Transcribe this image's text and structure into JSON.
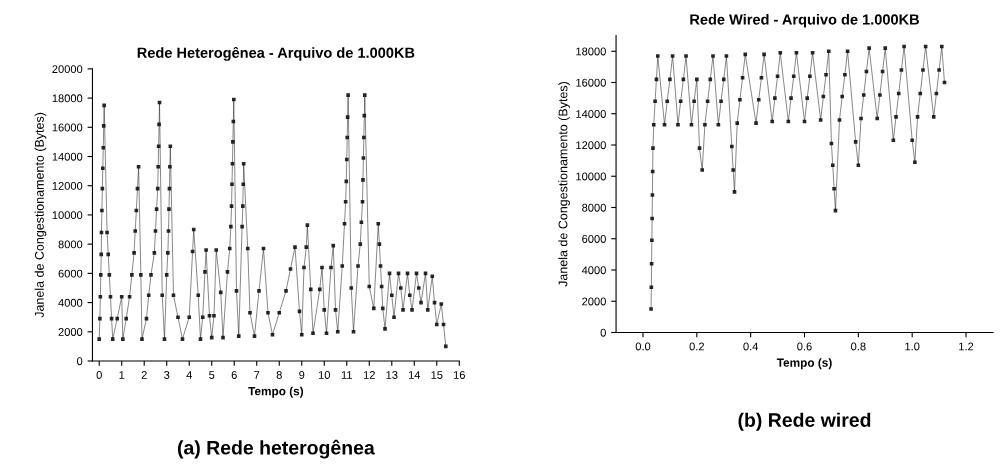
{
  "chart_data": [
    {
      "type": "line",
      "title": "Rede Heterogênea - Arquivo de 1.000KB",
      "xlabel": "Tempo (s)",
      "ylabel": "Janela de Congestionamento (Bytes)",
      "marker": "square",
      "line_style": "solid",
      "xlim": [
        -0.3,
        16
      ],
      "xticks": [
        0,
        1,
        2,
        3,
        4,
        5,
        6,
        7,
        8,
        9,
        10,
        11,
        12,
        13,
        14,
        15,
        16
      ],
      "ylim": [
        0,
        20000
      ],
      "yticks": [
        0,
        2000,
        4000,
        6000,
        8000,
        10000,
        12000,
        14000,
        16000,
        18000,
        20000
      ],
      "series": [
        {
          "color": "#111111",
          "x": [
            0.0,
            0.03,
            0.05,
            0.07,
            0.09,
            0.1,
            0.12,
            0.14,
            0.16,
            0.18,
            0.2,
            0.22,
            0.35,
            0.4,
            0.45,
            0.5,
            0.55,
            0.6,
            0.8,
            1.0,
            1.05,
            1.2,
            1.35,
            1.45,
            1.55,
            1.6,
            1.65,
            1.7,
            1.75,
            1.85,
            1.9,
            2.1,
            2.2,
            2.3,
            2.45,
            2.5,
            2.55,
            2.6,
            2.62,
            2.64,
            2.66,
            2.68,
            2.8,
            2.9,
            3.0,
            3.05,
            3.08,
            3.1,
            3.12,
            3.14,
            3.16,
            3.3,
            3.5,
            3.7,
            4.0,
            4.15,
            4.2,
            4.4,
            4.5,
            4.6,
            4.7,
            4.75,
            4.9,
            5.0,
            5.1,
            5.2,
            5.4,
            5.5,
            5.7,
            5.8,
            5.85,
            5.88,
            5.9,
            5.92,
            5.94,
            5.96,
            5.98,
            6.1,
            6.2,
            6.35,
            6.38,
            6.4,
            6.42,
            6.6,
            6.7,
            6.9,
            7.1,
            7.3,
            7.5,
            7.7,
            8.0,
            8.3,
            8.5,
            8.7,
            8.9,
            9.0,
            9.1,
            9.2,
            9.25,
            9.4,
            9.5,
            9.8,
            9.9,
            10.0,
            10.1,
            10.3,
            10.4,
            10.5,
            10.6,
            10.8,
            10.9,
            10.95,
            10.98,
            11.0,
            11.02,
            11.04,
            11.06,
            11.2,
            11.3,
            11.5,
            11.6,
            11.65,
            11.7,
            11.72,
            11.74,
            11.76,
            11.78,
            11.8,
            12.0,
            12.2,
            12.4,
            12.45,
            12.5,
            12.55,
            12.6,
            12.7,
            12.9,
            13.0,
            13.1,
            13.3,
            13.4,
            13.5,
            13.7,
            13.8,
            13.9,
            14.1,
            14.2,
            14.3,
            14.5,
            14.6,
            14.8,
            14.9,
            15.0,
            15.2,
            15.3,
            15.4
          ],
          "values": [
            1500,
            2900,
            4400,
            5900,
            7300,
            8800,
            10300,
            11800,
            13200,
            14600,
            16100,
            17500,
            8800,
            7300,
            5900,
            4400,
            2900,
            1500,
            2900,
            4400,
            1500,
            2900,
            4400,
            5900,
            7400,
            8900,
            10300,
            11800,
            13300,
            5900,
            1500,
            2900,
            4500,
            5900,
            7400,
            8900,
            10400,
            11800,
            13300,
            14700,
            16200,
            17700,
            4500,
            1500,
            5900,
            7400,
            8900,
            10400,
            11800,
            13300,
            14700,
            4500,
            3000,
            1500,
            3000,
            7500,
            9000,
            4500,
            1500,
            3000,
            6100,
            7600,
            3100,
            1600,
            3100,
            7600,
            4700,
            1600,
            6100,
            7700,
            9200,
            10600,
            12100,
            13500,
            15000,
            16400,
            17900,
            4800,
            1700,
            9200,
            10600,
            12100,
            13500,
            7700,
            3300,
            1700,
            4800,
            7700,
            3300,
            1800,
            3300,
            4800,
            6300,
            7800,
            3400,
            1800,
            6400,
            7800,
            9300,
            4900,
            1900,
            4900,
            6400,
            3500,
            1900,
            6400,
            7900,
            3500,
            2000,
            6500,
            9400,
            10900,
            12300,
            13800,
            15300,
            16700,
            18200,
            5000,
            2000,
            6500,
            8000,
            9500,
            10900,
            12400,
            13900,
            15300,
            16800,
            18200,
            5100,
            3600,
            9400,
            8000,
            6500,
            5100,
            3600,
            2200,
            6000,
            4500,
            3000,
            6000,
            5000,
            3500,
            6000,
            4500,
            3500,
            6000,
            5000,
            4000,
            6000,
            3500,
            5800,
            4000,
            2500,
            3900,
            2500,
            1000
          ]
        }
      ],
      "annotations": [
        "(a) Rede heterogênea"
      ]
    },
    {
      "type": "line",
      "title": "Rede Wired - Arquivo de 1.000KB",
      "xlabel": "Tempo (s)",
      "ylabel": "Janela de Congestionamento (Bytes)",
      "marker": "square",
      "line_style": "solid",
      "xlim": [
        -0.1,
        1.3
      ],
      "xticks": [
        {
          "value": 0,
          "label": "0.0"
        },
        {
          "value": 0.2,
          "label": "0.2"
        },
        {
          "value": 0.4,
          "label": "0.4"
        },
        {
          "value": 0.6,
          "label": "0.6"
        },
        {
          "value": 0.8,
          "label": "0.8"
        },
        {
          "value": 1,
          "label": "1.0"
        },
        {
          "value": 1.2,
          "label": "1.2"
        }
      ],
      "ylim": [
        0,
        19000
      ],
      "yticks": [
        0,
        2000,
        4000,
        6000,
        8000,
        10000,
        12000,
        14000,
        16000,
        18000
      ],
      "series": [
        {
          "color": "#111111",
          "x": [
            0.03,
            0.031,
            0.032,
            0.033,
            0.034,
            0.035,
            0.036,
            0.037,
            0.04,
            0.045,
            0.05,
            0.055,
            0.08,
            0.09,
            0.1,
            0.11,
            0.13,
            0.14,
            0.15,
            0.16,
            0.18,
            0.19,
            0.2,
            0.21,
            0.22,
            0.23,
            0.24,
            0.25,
            0.26,
            0.28,
            0.29,
            0.3,
            0.31,
            0.33,
            0.335,
            0.34,
            0.35,
            0.36,
            0.37,
            0.38,
            0.42,
            0.43,
            0.44,
            0.45,
            0.48,
            0.49,
            0.5,
            0.51,
            0.54,
            0.55,
            0.56,
            0.57,
            0.6,
            0.61,
            0.62,
            0.63,
            0.66,
            0.67,
            0.68,
            0.69,
            0.7,
            0.705,
            0.71,
            0.715,
            0.73,
            0.74,
            0.75,
            0.76,
            0.79,
            0.8,
            0.81,
            0.82,
            0.83,
            0.84,
            0.87,
            0.88,
            0.89,
            0.9,
            0.93,
            0.94,
            0.95,
            0.96,
            0.97,
            1.0,
            1.01,
            1.02,
            1.03,
            1.04,
            1.05,
            1.08,
            1.09,
            1.1,
            1.11,
            1.12
          ],
          "values": [
            1500,
            2900,
            4400,
            5900,
            7300,
            8800,
            10300,
            11800,
            13300,
            14800,
            16200,
            17700,
            13300,
            14800,
            16200,
            17700,
            13300,
            14800,
            16200,
            17700,
            13300,
            14800,
            16200,
            11800,
            10400,
            13300,
            14800,
            16200,
            17700,
            13300,
            14800,
            16200,
            17700,
            11900,
            10400,
            9000,
            13400,
            14900,
            16300,
            17800,
            13400,
            14900,
            16300,
            17800,
            13500,
            15000,
            16400,
            17900,
            13500,
            15000,
            16400,
            17900,
            13500,
            15000,
            16400,
            17900,
            13600,
            15100,
            16500,
            18000,
            12100,
            10700,
            9200,
            7800,
            13600,
            15100,
            16500,
            18000,
            12200,
            10700,
            13700,
            15200,
            16700,
            18200,
            13700,
            15200,
            16700,
            18200,
            12300,
            13800,
            15300,
            16800,
            18300,
            12300,
            10900,
            13800,
            15300,
            16800,
            18300,
            13800,
            15300,
            16800,
            18300,
            16000
          ]
        }
      ],
      "annotations": [
        "(b) Rede wired"
      ]
    }
  ]
}
